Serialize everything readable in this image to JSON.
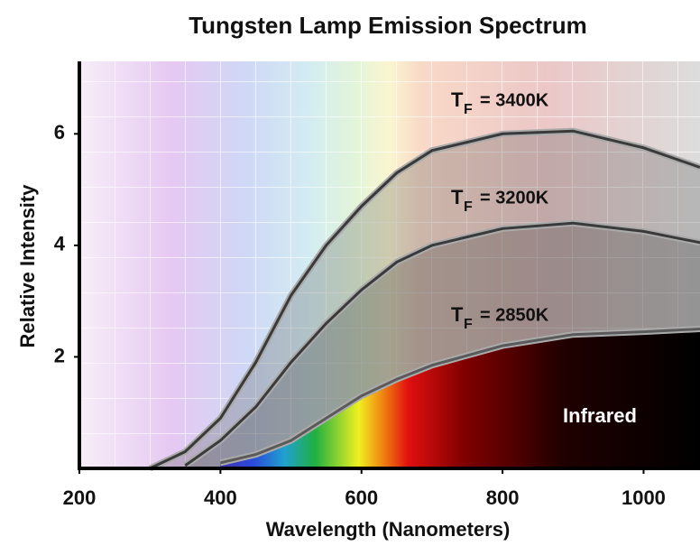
{
  "chart_data": {
    "type": "line",
    "title": "Tungsten Lamp Emission Spectrum",
    "xlabel": "Wavelength (Nanometers)",
    "ylabel": "Relative Intensity",
    "x": [
      300,
      350,
      400,
      450,
      500,
      550,
      600,
      650,
      700,
      800,
      900,
      1000,
      1080
    ],
    "series": [
      {
        "name": "3400K",
        "color": "#3a3a3a",
        "values": [
          0,
          0.3,
          0.9,
          1.9,
          3.1,
          4.0,
          4.7,
          5.3,
          5.7,
          6.0,
          6.05,
          5.75,
          5.4
        ]
      },
      {
        "name": "3200K",
        "color": "#3a3a3a",
        "values": [
          null,
          0.05,
          0.5,
          1.1,
          1.9,
          2.6,
          3.2,
          3.7,
          4.0,
          4.3,
          4.4,
          4.25,
          4.05
        ]
      },
      {
        "name": "2850K",
        "color": "#5a5a5a",
        "values": [
          null,
          null,
          0.1,
          0.25,
          0.5,
          0.9,
          1.3,
          1.6,
          1.85,
          2.2,
          2.4,
          2.45,
          2.5
        ]
      }
    ],
    "annotations": [
      {
        "main": "T",
        "sub": "F",
        "text": "= 3400K"
      },
      {
        "main": "T",
        "sub": "F",
        "text": "= 3200K"
      },
      {
        "main": "T",
        "sub": "F",
        "text": "= 2850K"
      },
      {
        "text": "Infrared"
      }
    ],
    "xlim": [
      200,
      1080
    ],
    "ylim": [
      0,
      7.3
    ],
    "xticks": [
      200,
      400,
      600,
      800,
      1000
    ],
    "yticks": [
      2,
      4,
      6
    ]
  }
}
